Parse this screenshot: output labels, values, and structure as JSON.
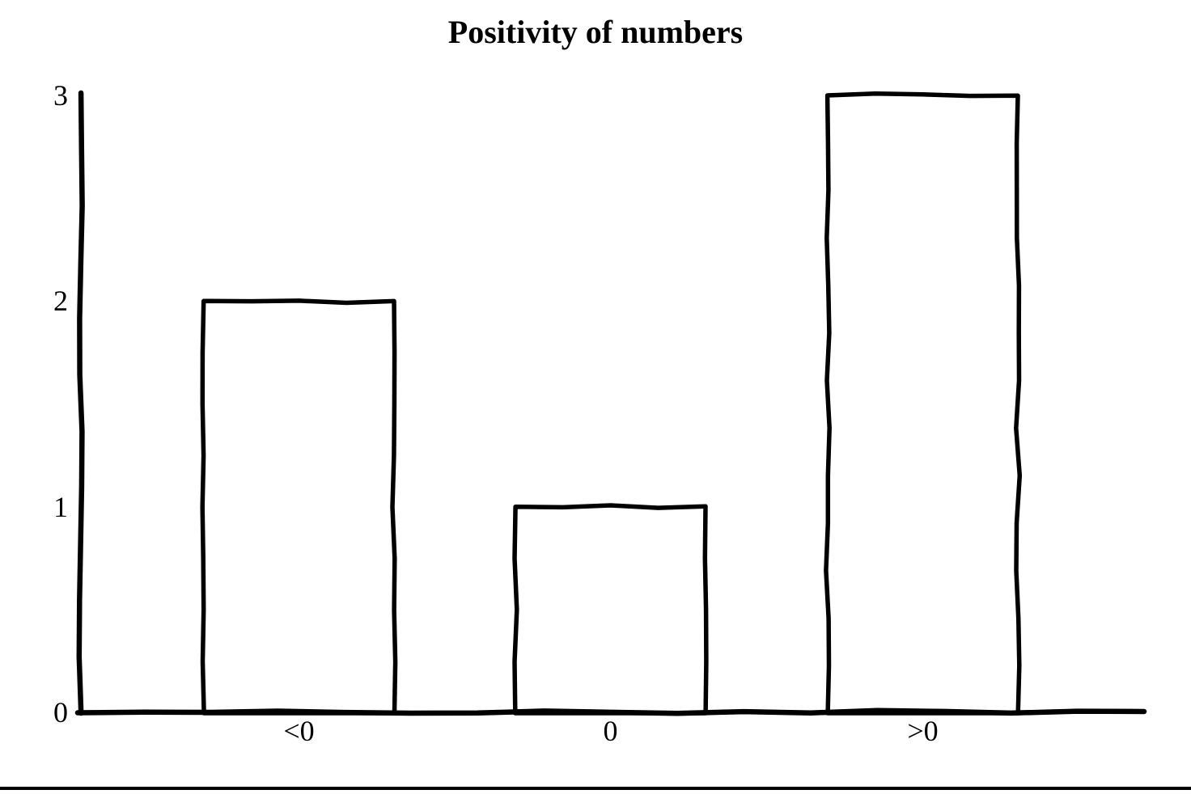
{
  "page": {
    "background": "#ffffff"
  },
  "chart_data": {
    "type": "bar",
    "title": "Positivity of numbers",
    "categories": [
      "<0",
      "0",
      ">0"
    ],
    "values": [
      2,
      1,
      3
    ],
    "xlabel": "",
    "ylabel": "",
    "ylim": [
      0,
      3
    ],
    "yticks": [
      0,
      1,
      2,
      3
    ],
    "grid": false,
    "legend": "none",
    "style": "hand-drawn",
    "colors": {
      "stroke": "#000000",
      "bar_fill": "#ffffff",
      "text": "#000000",
      "background": "#ffffff"
    }
  }
}
